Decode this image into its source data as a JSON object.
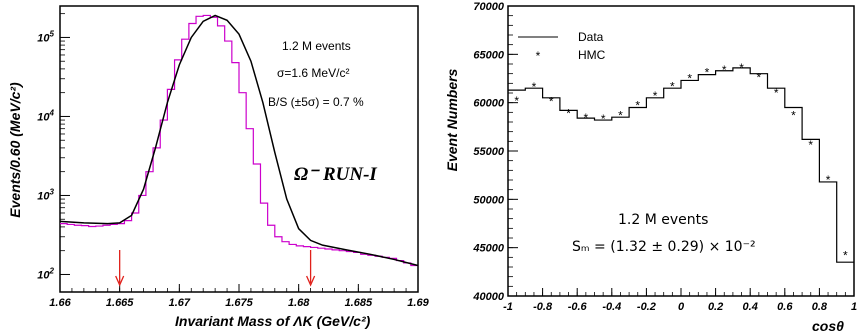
{
  "chart_data": [
    {
      "type": "line",
      "title": "",
      "xlabel": "Invariant Mass of ΛK (GeV/c²)",
      "ylabel": "Events/0.60 (MeV/c²)",
      "xlim": [
        1.66,
        1.69
      ],
      "ylim": [
        60,
        250000
      ],
      "yscale": "log",
      "x_ticks": [
        "1.66",
        "1.665",
        "1.67",
        "1.675",
        "1.68",
        "1.685",
        "1.69"
      ],
      "y_tick_bases": [
        "10",
        "10",
        "10",
        "10"
      ],
      "y_tick_exps": [
        "2",
        "3",
        "4",
        "5"
      ],
      "annotations": [
        "1.2 M events",
        "σ=1.6 MeV/c²",
        "B/S (±5σ) = 0.7 %"
      ],
      "run_label": "Ω⁻ RUN-I",
      "arrows_at_x": [
        1.665,
        1.681
      ],
      "series": [
        {
          "name": "",
          "style": "histogram",
          "color": "#cc00cc",
          "x": [
            1.6603,
            1.6609,
            1.6615,
            1.6621,
            1.6627,
            1.6633,
            1.6639,
            1.6645,
            1.6651,
            1.6657,
            1.6663,
            1.6669,
            1.6675,
            1.6681,
            1.6687,
            1.6693,
            1.6699,
            1.6705,
            1.6711,
            1.6717,
            1.6723,
            1.6729,
            1.6735,
            1.6741,
            1.6747,
            1.6753,
            1.6759,
            1.6765,
            1.6771,
            1.6777,
            1.6783,
            1.6789,
            1.6795,
            1.6801,
            1.6807,
            1.6813,
            1.6819,
            1.6825,
            1.6831,
            1.6837,
            1.6843,
            1.6849,
            1.6855,
            1.6861,
            1.6867,
            1.6873,
            1.6879,
            1.6885,
            1.6891,
            1.6897
          ],
          "y": [
            440,
            430,
            420,
            415,
            405,
            410,
            420,
            430,
            440,
            480,
            600,
            1000,
            2000,
            4000,
            9000,
            22000,
            52000,
            95000,
            150000,
            185000,
            190000,
            180000,
            140000,
            90000,
            48000,
            20000,
            7000,
            2500,
            800,
            420,
            300,
            260,
            240,
            230,
            225,
            220,
            215,
            210,
            205,
            200,
            195,
            190,
            180,
            175,
            170,
            165,
            160,
            150,
            140,
            130
          ]
        },
        {
          "name": "",
          "style": "line",
          "color": "#000000",
          "x": [
            1.66,
            1.662,
            1.664,
            1.665,
            1.666,
            1.667,
            1.668,
            1.669,
            1.67,
            1.671,
            1.672,
            1.673,
            1.674,
            1.675,
            1.676,
            1.677,
            1.678,
            1.679,
            1.68,
            1.681,
            1.682,
            1.684,
            1.686,
            1.688,
            1.69
          ],
          "y": [
            470,
            450,
            440,
            450,
            560,
            1200,
            4000,
            15000,
            45000,
            100000,
            160000,
            190000,
            165000,
            110000,
            50000,
            15000,
            3500,
            900,
            380,
            270,
            235,
            205,
            180,
            155,
            130
          ]
        }
      ]
    },
    {
      "type": "line",
      "title": "",
      "xlabel": "cosθ",
      "ylabel": "Event Numbers",
      "xlim": [
        -1,
        1
      ],
      "ylim": [
        40000,
        70000
      ],
      "x_ticks": [
        "-1",
        "-0.8",
        "-0.6",
        "-0.4",
        "-0.2",
        "0",
        "0.2",
        "0.4",
        "0.6",
        "0.8",
        "1"
      ],
      "y_ticks": [
        "40000",
        "45000",
        "50000",
        "55000",
        "60000",
        "65000",
        "70000"
      ],
      "legend": {
        "placement": "top-left",
        "entries": [
          "Data",
          "HMC"
        ]
      },
      "annotations": [
        "1.2 M events",
        "Sₘ = (1.32 ± 0.29) × 10⁻²"
      ],
      "series": [
        {
          "name": "Data",
          "style": "histogram",
          "color": "#000000",
          "x": [
            -0.95,
            -0.85,
            -0.75,
            -0.65,
            -0.55,
            -0.45,
            -0.35,
            -0.25,
            -0.15,
            -0.05,
            0.05,
            0.15,
            0.25,
            0.35,
            0.45,
            0.55,
            0.65,
            0.75,
            0.85,
            0.95
          ],
          "y": [
            61300,
            61500,
            60500,
            59200,
            58400,
            58200,
            58500,
            59500,
            60500,
            61500,
            62300,
            62900,
            63300,
            63600,
            63000,
            61500,
            59500,
            56200,
            51800,
            43500
          ]
        },
        {
          "name": "HMC",
          "style": "marker",
          "color": "#000000",
          "x": [
            -0.95,
            -0.85,
            -0.75,
            -0.65,
            -0.55,
            -0.45,
            -0.35,
            -0.25,
            -0.15,
            -0.05,
            0.05,
            0.15,
            0.25,
            0.35,
            0.45,
            0.55,
            0.65,
            0.75,
            0.85,
            0.95
          ],
          "y": [
            60300,
            61700,
            60200,
            59000,
            58500,
            58400,
            58800,
            59800,
            60800,
            61800,
            62600,
            63200,
            63500,
            63700,
            62700,
            61100,
            58800,
            55700,
            52100,
            44300
          ]
        }
      ]
    }
  ]
}
